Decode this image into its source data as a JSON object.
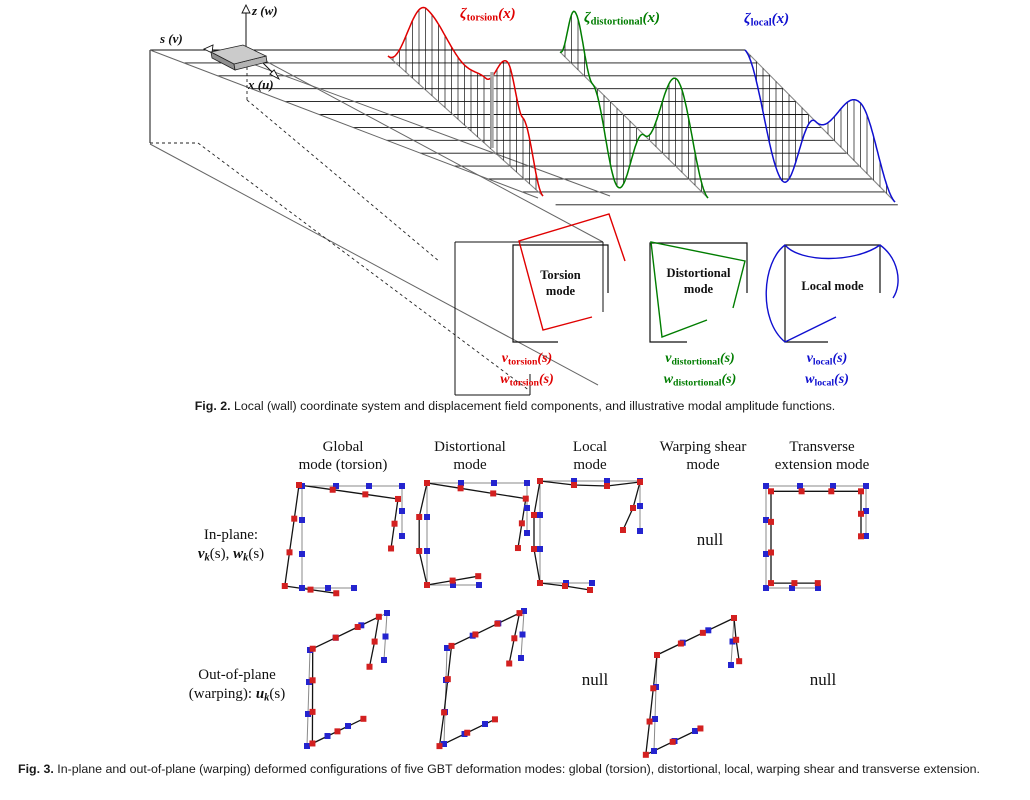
{
  "figure2": {
    "caption_label": "Fig. 2.",
    "caption_text": " Local (wall) coordinate system and displacement field components, and illustrative modal amplitude functions.",
    "axes": {
      "z": "z (w)",
      "s": "s (v)",
      "x": "x (u)"
    },
    "colors": {
      "torsion": "#e00000",
      "distortional": "#007d00",
      "local": "#0f0fd0"
    },
    "amplitude_labels": [
      {
        "name": "zeta-torsion",
        "color": "#e00000",
        "parts": [
          {
            "t": "ζ",
            "c": "rvar"
          },
          {
            "t": "torsion",
            "c": "rsub"
          },
          {
            "t": "(x)",
            "c": "rvar"
          }
        ]
      },
      {
        "name": "zeta-distortional",
        "color": "#007d00",
        "parts": [
          {
            "t": "ζ",
            "c": "rvar"
          },
          {
            "t": "distortional",
            "c": "rsub"
          },
          {
            "t": "(x)",
            "c": "rvar"
          }
        ]
      },
      {
        "name": "zeta-local",
        "color": "#0f0fd0",
        "parts": [
          {
            "t": "ζ",
            "c": "rvar"
          },
          {
            "t": "local",
            "c": "rsub"
          },
          {
            "t": "(x)",
            "c": "rvar"
          }
        ]
      }
    ],
    "mode_boxes": [
      {
        "title_lines": [
          "Torsion",
          "mode"
        ],
        "color": "#e00000",
        "v_parts": [
          {
            "t": "v",
            "c": "rvar"
          },
          {
            "t": "torsion",
            "c": "rsub"
          },
          {
            "t": "(s)",
            "c": "rvar"
          }
        ],
        "w_parts": [
          {
            "t": "w",
            "c": "rvar"
          },
          {
            "t": "torsion",
            "c": "rsub"
          },
          {
            "t": "(s)",
            "c": "rvar"
          }
        ]
      },
      {
        "title_lines": [
          "Distortional",
          "mode"
        ],
        "color": "#007d00",
        "v_parts": [
          {
            "t": "v",
            "c": "rvar"
          },
          {
            "t": "distortional",
            "c": "rsub"
          },
          {
            "t": "(s)",
            "c": "rvar"
          }
        ],
        "w_parts": [
          {
            "t": "w",
            "c": "rvar"
          },
          {
            "t": "distortional",
            "c": "rsub"
          },
          {
            "t": "(s)",
            "c": "rvar"
          }
        ]
      },
      {
        "title_lines": [
          "Local mode"
        ],
        "color": "#0f0fd0",
        "v_parts": [
          {
            "t": "v",
            "c": "rvar"
          },
          {
            "t": "local",
            "c": "rsub"
          },
          {
            "t": "(s)",
            "c": "rvar"
          }
        ],
        "w_parts": [
          {
            "t": "w",
            "c": "rvar"
          },
          {
            "t": "local",
            "c": "rsub"
          },
          {
            "t": "(s)",
            "c": "rvar"
          }
        ]
      }
    ]
  },
  "figure3": {
    "caption_label": "Fig. 3.",
    "caption_text": " In-plane and out-of-plane (warping) deformed configurations of five GBT deformation modes: global (torsion), distortional, local, warping shear and transverse extension.",
    "columns": [
      [
        "Global",
        "mode (torsion)"
      ],
      [
        "Distortional",
        "mode"
      ],
      [
        "Local",
        "mode"
      ],
      [
        "Warping shear",
        "mode"
      ],
      [
        "Transverse",
        "extension mode"
      ]
    ],
    "row_labels": [
      {
        "line1": "In-plane:",
        "line2": [
          {
            "t": "v",
            "c": "rvar"
          },
          {
            "t": "k",
            "c": "rsubi"
          },
          {
            "t": "(s), ",
            "c": "rnorm"
          },
          {
            "t": "w",
            "c": "rvar"
          },
          {
            "t": "k",
            "c": "rsubi"
          },
          {
            "t": "(s)",
            "c": "rnorm"
          }
        ]
      },
      {
        "line1": "Out-of-plane",
        "line2": [
          {
            "t": "(warping): ",
            "c": "rnorm"
          },
          {
            "t": "u",
            "c": "rvar"
          },
          {
            "t": "k",
            "c": "rsubi"
          },
          {
            "t": "(s)",
            "c": "rnorm"
          }
        ]
      }
    ],
    "null_label": "null",
    "grid": [
      [
        "torsion",
        "distortional",
        "local",
        null,
        "transverse"
      ],
      [
        "torsion_w",
        "distortional_w",
        null,
        "warpshear_w",
        null
      ]
    ],
    "node_colors": {
      "undeformed": "#2424cf",
      "deformed": "#d32020"
    },
    "line_colors": {
      "undeformed": "#8a8a8a",
      "deformed": "#141414"
    }
  }
}
